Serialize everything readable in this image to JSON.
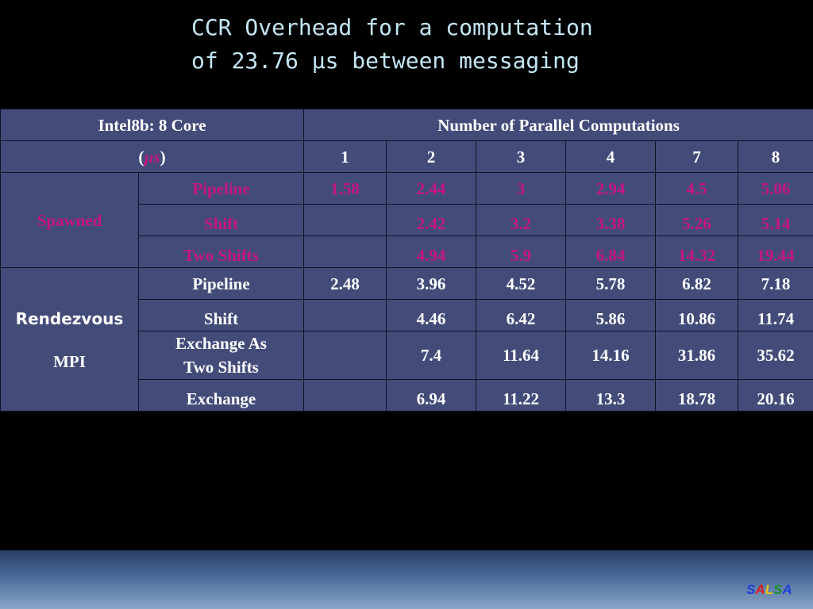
{
  "title": {
    "line1": "CCR Overhead for a computation",
    "line2": "of 23.76 µs between messaging"
  },
  "table": {
    "corner_label": "Intel8b: 8 Core",
    "unit_open": "(",
    "unit": "µs",
    "unit_close": ")",
    "group_header": "Number of Parallel Computations",
    "columns": [
      "1",
      "2",
      "3",
      "4",
      "7",
      "8"
    ],
    "spawned": {
      "label": "Spawned",
      "rows": [
        {
          "name": "Pipeline",
          "values": [
            "1.58",
            "2.44",
            "3",
            "2.94",
            "4.5",
            "5.06"
          ]
        },
        {
          "name": "Shift",
          "values": [
            "",
            "2.42",
            "3.2",
            "3.38",
            "5.26",
            "5.14"
          ]
        },
        {
          "name": "Two Shifts",
          "values": [
            "",
            "4.94",
            "5.9",
            "6.84",
            "14.32",
            "19.44"
          ]
        }
      ]
    },
    "rendezvous": {
      "label_line1": "Rendezvous",
      "label_line2": "MPI",
      "rows": [
        {
          "name": "Pipeline",
          "values": [
            "2.48",
            "3.96",
            "4.52",
            "5.78",
            "6.82",
            "7.18"
          ]
        },
        {
          "name": "Shift",
          "values": [
            "",
            "4.46",
            "6.42",
            "5.86",
            "10.86",
            "11.74"
          ]
        },
        {
          "name_line1": "Exchange As",
          "name_line2": "Two Shifts",
          "values": [
            "",
            "7.4",
            "11.64",
            "14.16",
            "31.86",
            "35.62"
          ]
        },
        {
          "name": "Exchange",
          "values": [
            "",
            "6.94",
            "11.22",
            "13.3",
            "18.78",
            "20.16"
          ]
        }
      ]
    }
  },
  "logo": {
    "letters": [
      "S",
      "A",
      "L",
      "S",
      "A"
    ],
    "colors": [
      "#1e3fd8",
      "#d81e1e",
      "#e8c21a",
      "#1e8f2e",
      "#1e3fd8"
    ]
  },
  "colors": {
    "title_text": "#c3e6f5",
    "table_bg": "#434c79",
    "accent_magenta": "#c71585",
    "background": "#000000"
  }
}
